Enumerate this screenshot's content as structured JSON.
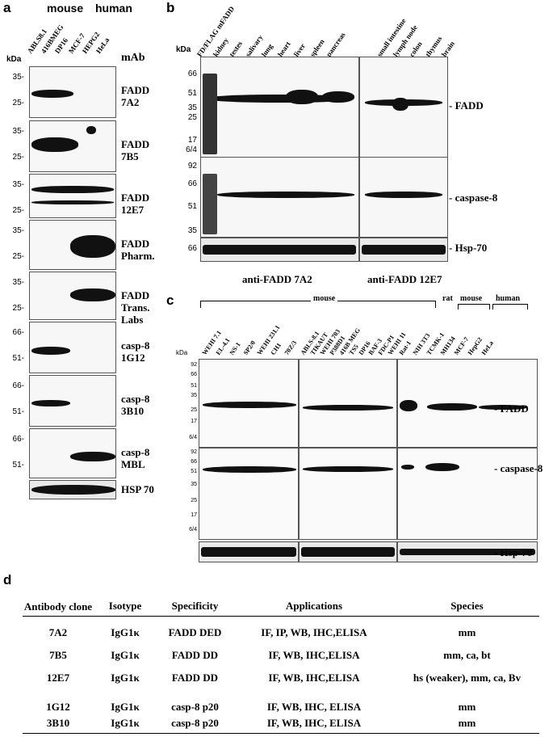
{
  "panels": {
    "a": "a",
    "b": "b",
    "c": "c",
    "d": "d"
  },
  "a": {
    "species": [
      "mouse",
      "human"
    ],
    "kda": "kDa",
    "mab": "mAb",
    "lanes": [
      "ABLS8.1",
      "416BMEG",
      "DP16",
      "MCF-7",
      "HEPG2",
      "HeLa"
    ],
    "rows": [
      {
        "mw": [
          "35-",
          "25-"
        ],
        "label": [
          "FADD",
          "7A2"
        ]
      },
      {
        "mw": [
          "35-",
          "25-"
        ],
        "label": [
          "FADD",
          "7B5"
        ]
      },
      {
        "mw": [
          "35-",
          "25-"
        ],
        "label": [
          "FADD",
          "12E7"
        ]
      },
      {
        "mw": [
          "35-",
          "25-"
        ],
        "label": [
          "FADD",
          "Pharm."
        ]
      },
      {
        "mw": [
          "35-",
          "25-"
        ],
        "label": [
          "FADD",
          "Trans.",
          "Labs"
        ]
      },
      {
        "mw": [
          "66-",
          "51-"
        ],
        "label": [
          "casp-8",
          "1G12"
        ]
      },
      {
        "mw": [
          "66-",
          "51-"
        ],
        "label": [
          "casp-8",
          "3B10"
        ]
      },
      {
        "mw": [
          "66-",
          "51-"
        ],
        "label": [
          "casp-8",
          "MBL"
        ]
      },
      {
        "mw": [],
        "label": [
          "HSP 70"
        ]
      }
    ]
  },
  "b": {
    "kda": "kDa",
    "lanes": [
      "FD/FLAG mFADD",
      "kidney",
      "testes",
      "salivary",
      "lung",
      "heart",
      "liver",
      "spleen",
      "pancreas",
      "small intestine",
      "lymph node",
      "colon",
      "thymus",
      "brain"
    ],
    "mw_top": [
      "66",
      "51",
      "35",
      "25",
      "17",
      "6/4"
    ],
    "mw_mid": [
      "92",
      "66",
      "51",
      "35"
    ],
    "mw_bot": [
      "66"
    ],
    "labels": [
      "- FADD",
      "- caspase-8",
      "- Hsp-70"
    ],
    "footer": [
      "anti-FADD 7A2",
      "anti-FADD 12E7"
    ]
  },
  "c": {
    "groups": [
      "mouse",
      "rat",
      "mouse",
      "human"
    ],
    "kda": "kDa",
    "lanes": [
      "WEHI 7.1",
      "EL-4.1",
      "NS-1",
      "SP2/0",
      "WEHI 231.1",
      "CH1",
      "70Z/3",
      "ABLS-8.1",
      "TIKAUT",
      "WEHI 703",
      "P388D1",
      "416B MEG",
      "TS5",
      "DP16",
      "BAF-3",
      "FDC-P1",
      "WEHI 11",
      "Rat-1",
      "NIH 3T3",
      "TCMK-1",
      "MH134",
      "MCF-7",
      "HepG2",
      "HeLa"
    ],
    "mw_top": [
      "92",
      "66",
      "51",
      "35",
      "25",
      "17",
      "6/4"
    ],
    "mw_mid": [
      "92",
      "66",
      "51",
      "35",
      "25",
      "17",
      "6/4"
    ],
    "labels": [
      "- FADD",
      "- caspase-8",
      "- Hsp-70"
    ]
  },
  "d": {
    "headers": [
      "Antibody clone",
      "Isotype",
      "Specificity",
      "Applications",
      "Species"
    ],
    "rows": [
      [
        "7A2",
        "IgG1κ",
        "FADD DED",
        "IF, IP, WB, IHC,ELISA",
        "mm"
      ],
      [
        "7B5",
        "IgG1κ",
        "FADD DD",
        "IF, WB, IHC,ELISA",
        "mm, ca, bt"
      ],
      [
        "12E7",
        "IgG1κ",
        "FADD DD",
        "IF,  WB, IHC,ELISA",
        "hs (weaker), mm, ca, Bv"
      ],
      [
        "1G12",
        "IgG1κ",
        "casp-8 p20",
        "IF, WB, IHC, ELISA",
        "mm"
      ],
      [
        "3B10",
        "IgG1κ",
        "casp-8 p20",
        "IF, WB, IHC, ELISA",
        "mm"
      ]
    ]
  }
}
